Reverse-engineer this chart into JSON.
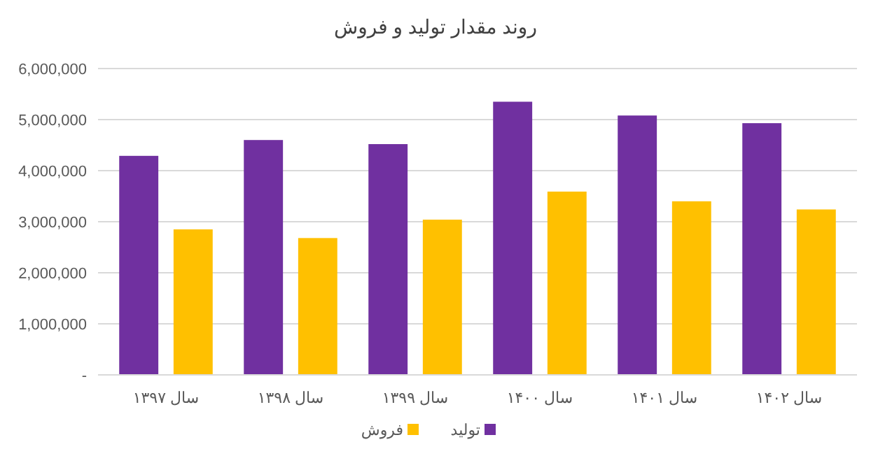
{
  "chart_data": {
    "type": "bar",
    "title": "روند مقدار تولید و فروش",
    "categories": [
      "سال ۱۳۹۷",
      "سال ۱۳۹۸",
      "سال ۱۳۹۹",
      "سال ۱۴۰۰",
      "سال ۱۴۰۱",
      "سال ۱۴۰۲"
    ],
    "series": [
      {
        "name": "تولید",
        "color": "#7030a0",
        "values": [
          4290000,
          4600000,
          4520000,
          5350000,
          5080000,
          4930000
        ]
      },
      {
        "name": "فروش",
        "color": "#ffc000",
        "values": [
          2850000,
          2680000,
          3040000,
          3590000,
          3400000,
          3240000
        ]
      }
    ],
    "ylim": [
      0,
      6000000
    ],
    "yticks": [
      {
        "value": 0,
        "label": "-"
      },
      {
        "value": 1000000,
        "label": "1,000,000"
      },
      {
        "value": 2000000,
        "label": "2,000,000"
      },
      {
        "value": 3000000,
        "label": "3,000,000"
      },
      {
        "value": 4000000,
        "label": "4,000,000"
      },
      {
        "value": 5000000,
        "label": "5,000,000"
      },
      {
        "value": 6000000,
        "label": "6,000,000"
      }
    ],
    "grid": true,
    "legend": "bottom"
  }
}
